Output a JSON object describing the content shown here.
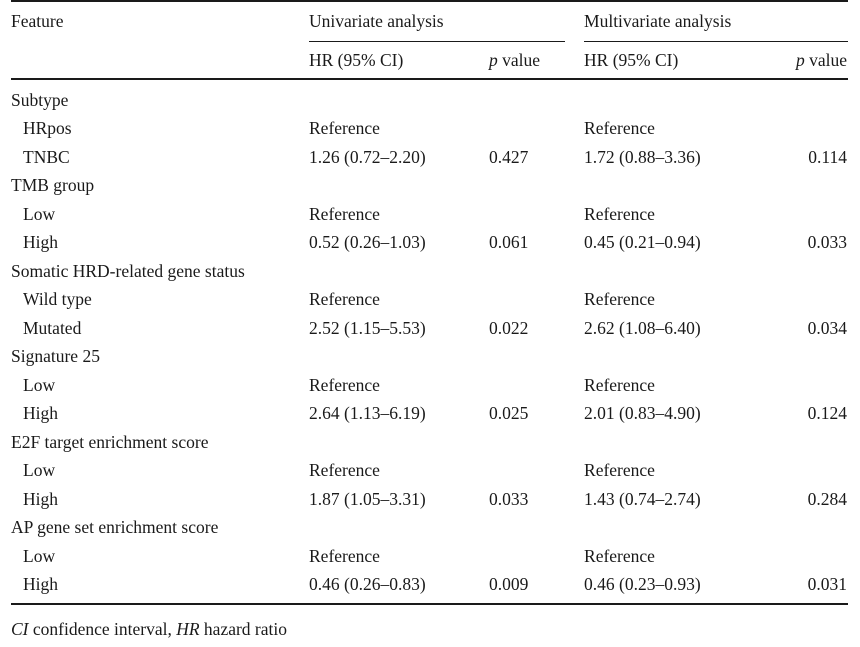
{
  "header": {
    "feature": "Feature",
    "univariate": "Univariate analysis",
    "multivariate": "Multivariate analysis",
    "hr_ci": "HR (95% CI)",
    "p_prefix": "p",
    "p_suffix": " value"
  },
  "rows": [
    {
      "label": "Subtype",
      "type": "group"
    },
    {
      "label": "HRpos",
      "type": "item",
      "u_hr": "Reference",
      "u_p": "",
      "m_hr": "Reference",
      "m_p": ""
    },
    {
      "label": "TNBC",
      "type": "item",
      "u_hr": "1.26 (0.72–2.20)",
      "u_p": "0.427",
      "m_hr": "1.72 (0.88–3.36)",
      "m_p": "0.114"
    },
    {
      "label": "TMB group",
      "type": "group"
    },
    {
      "label": "Low",
      "type": "item",
      "u_hr": "Reference",
      "u_p": "",
      "m_hr": "Reference",
      "m_p": ""
    },
    {
      "label": "High",
      "type": "item",
      "u_hr": "0.52 (0.26–1.03)",
      "u_p": "0.061",
      "m_hr": "0.45 (0.21–0.94)",
      "m_p": "0.033"
    },
    {
      "label": "Somatic HRD-related gene status",
      "type": "group"
    },
    {
      "label": "Wild type",
      "type": "item",
      "u_hr": "Reference",
      "u_p": "",
      "m_hr": "Reference",
      "m_p": ""
    },
    {
      "label": "Mutated",
      "type": "item",
      "u_hr": "2.52 (1.15–5.53)",
      "u_p": "0.022",
      "m_hr": "2.62 (1.08–6.40)",
      "m_p": "0.034"
    },
    {
      "label": "Signature 25",
      "type": "group"
    },
    {
      "label": "Low",
      "type": "item",
      "u_hr": "Reference",
      "u_p": "",
      "m_hr": "Reference",
      "m_p": ""
    },
    {
      "label": "High",
      "type": "item",
      "u_hr": "2.64 (1.13–6.19)",
      "u_p": "0.025",
      "m_hr": "2.01 (0.83–4.90)",
      "m_p": "0.124"
    },
    {
      "label": "E2F target enrichment score",
      "type": "group"
    },
    {
      "label": "Low",
      "type": "item",
      "u_hr": "Reference",
      "u_p": "",
      "m_hr": "Reference",
      "m_p": ""
    },
    {
      "label": "High",
      "type": "item",
      "u_hr": "1.87 (1.05–3.31)",
      "u_p": "0.033",
      "m_hr": "1.43 (0.74–2.74)",
      "m_p": "0.284"
    },
    {
      "label": "AP gene set enrichment score",
      "type": "group"
    },
    {
      "label": "Low",
      "type": "item",
      "u_hr": "Reference",
      "u_p": "",
      "m_hr": "Reference",
      "m_p": ""
    },
    {
      "label": "High",
      "type": "item",
      "u_hr": "0.46 (0.26–0.83)",
      "u_p": "0.009",
      "m_hr": "0.46 (0.23–0.93)",
      "m_p": "0.031"
    }
  ],
  "footnote": {
    "ci_abbr": "CI",
    "ci_text": " confidence interval, ",
    "hr_abbr": "HR",
    "hr_text": " hazard ratio"
  }
}
